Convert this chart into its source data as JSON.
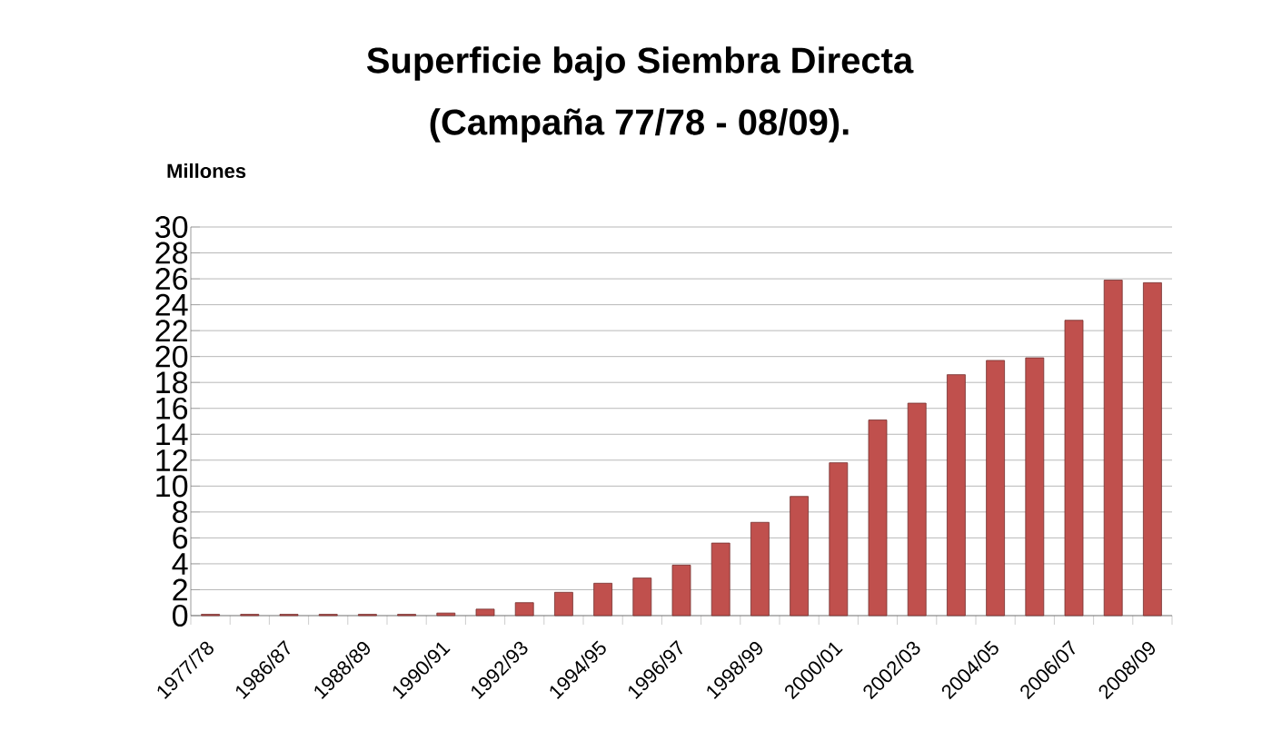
{
  "chart_data": {
    "type": "bar",
    "title": "Superficie bajo Siembra Directa",
    "subtitle": "(Campaña 77/78 - 08/09).",
    "ylabel": "Millones",
    "categories": [
      "1977/78",
      null,
      "1986/87",
      null,
      "1988/89",
      null,
      "1990/91",
      null,
      "1992/93",
      null,
      "1994/95",
      null,
      "1996/97",
      null,
      "1998/99",
      null,
      "2000/01",
      null,
      "2002/03",
      null,
      "2004/05",
      null,
      "2006/07",
      null,
      "2008/09"
    ],
    "values": [
      0.1,
      0.1,
      0.1,
      0.1,
      0.1,
      0.1,
      0.2,
      0.5,
      1.0,
      1.8,
      2.5,
      2.9,
      3.9,
      5.6,
      7.2,
      9.2,
      11.8,
      15.1,
      16.4,
      18.6,
      19.7,
      19.9,
      22.8,
      25.9,
      25.7
    ],
    "color": "#c0504d",
    "ylim": [
      0,
      30
    ],
    "yticks": [
      0,
      2,
      4,
      6,
      8,
      10,
      12,
      14,
      16,
      18,
      20,
      22,
      24,
      26,
      28,
      30
    ],
    "grid": "y"
  }
}
